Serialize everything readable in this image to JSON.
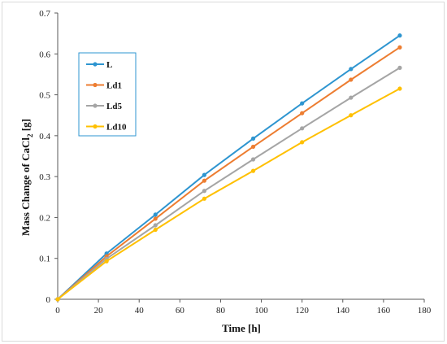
{
  "chart_data": {
    "type": "line",
    "title": "",
    "xlabel": "Time [h]",
    "ylabel_main": "Mass Change of CaCl",
    "ylabel_sub": "2",
    "ylabel_suffix": " [g]",
    "x": [
      0,
      24,
      48,
      72,
      96,
      120,
      144,
      168
    ],
    "xlim": [
      0,
      180
    ],
    "ylim": [
      0,
      0.7
    ],
    "xticks": [
      "0",
      "20",
      "40",
      "60",
      "80",
      "100",
      "120",
      "140",
      "160",
      "180"
    ],
    "yticks": [
      "0",
      "0.1",
      "0.2",
      "0.3",
      "0.4",
      "0.5",
      "0.6",
      "0.7"
    ],
    "grid": false,
    "legend_position": "top-left",
    "series": [
      {
        "name": "L",
        "color": "#2e95d0",
        "values": [
          0,
          0.112,
          0.207,
          0.304,
          0.393,
          0.479,
          0.563,
          0.645
        ]
      },
      {
        "name": "Ld1",
        "color": "#ed7d31",
        "values": [
          0,
          0.105,
          0.197,
          0.29,
          0.373,
          0.455,
          0.537,
          0.616
        ]
      },
      {
        "name": "Ld5",
        "color": "#a5a5a5",
        "values": [
          0,
          0.099,
          0.181,
          0.265,
          0.342,
          0.418,
          0.493,
          0.566
        ]
      },
      {
        "name": "Ld10",
        "color": "#ffc000",
        "values": [
          0,
          0.093,
          0.17,
          0.246,
          0.314,
          0.384,
          0.45,
          0.515
        ]
      }
    ]
  }
}
